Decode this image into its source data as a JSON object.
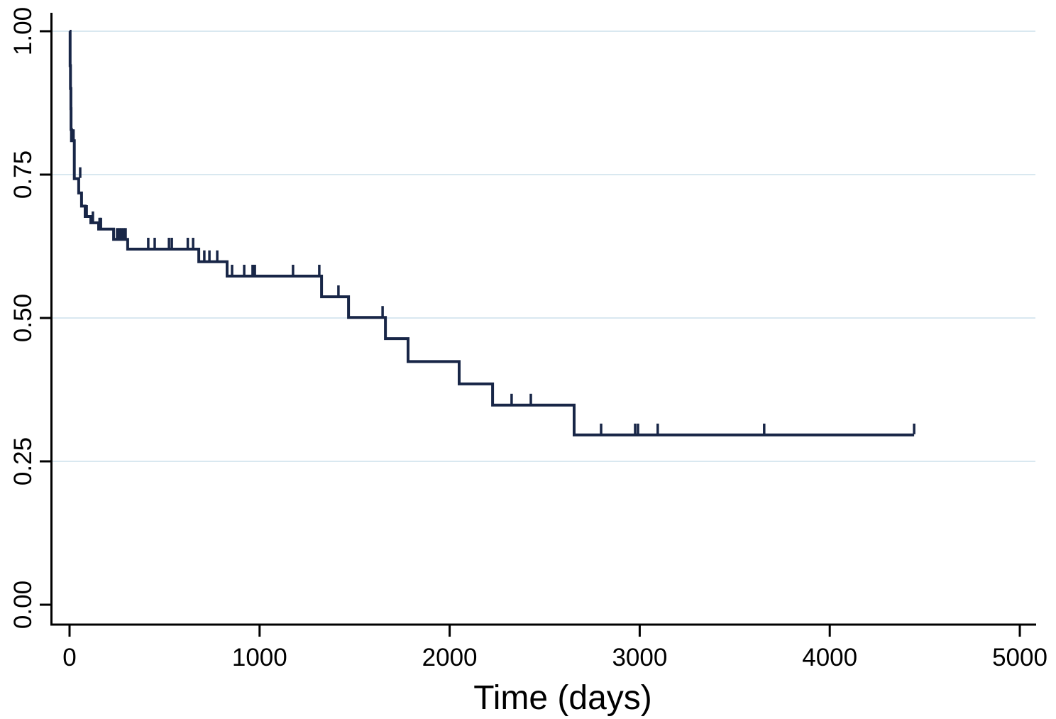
{
  "chart_data": {
    "type": "line",
    "subtype": "kaplan-meier-step",
    "title": "",
    "xlabel": "Time (days)",
    "ylabel": "",
    "xlim": [
      0,
      5090
    ],
    "ylim": [
      0.0,
      1.0
    ],
    "grid": "horizontal-at-y-ticks",
    "legend": "none",
    "x_ticks": [
      {
        "label": "0",
        "value": 0
      },
      {
        "label": "1000",
        "value": 1000
      },
      {
        "label": "2000",
        "value": 2000
      },
      {
        "label": "3000",
        "value": 3000
      },
      {
        "label": "4000",
        "value": 4000
      },
      {
        "label": "5000",
        "value": 5000
      }
    ],
    "y_ticks": [
      {
        "label": "0.00",
        "value": 0.0
      },
      {
        "label": "0.25",
        "value": 0.25
      },
      {
        "label": "0.50",
        "value": 0.5
      },
      {
        "label": "0.75",
        "value": 0.75
      },
      {
        "label": "1.00",
        "value": 1.0
      }
    ],
    "colors": {
      "curve": "#182647",
      "axis": "#000000",
      "gridline": "#d9e8f0",
      "background": "#ffffff",
      "text": "#000000"
    },
    "series": [
      {
        "name": "survival-curve",
        "steps": [
          [
            0,
            1.0
          ],
          [
            3,
            0.94
          ],
          [
            5,
            0.9
          ],
          [
            7,
            0.865
          ],
          [
            8,
            0.829
          ],
          [
            10,
            0.809
          ],
          [
            25,
            0.743
          ],
          [
            48,
            0.718
          ],
          [
            63,
            0.695
          ],
          [
            82,
            0.677
          ],
          [
            112,
            0.666
          ],
          [
            153,
            0.655
          ],
          [
            232,
            0.637
          ],
          [
            306,
            0.62
          ],
          [
            680,
            0.598
          ],
          [
            829,
            0.573
          ],
          [
            1326,
            0.537
          ],
          [
            1468,
            0.501
          ],
          [
            1662,
            0.464
          ],
          [
            1781,
            0.424
          ],
          [
            2050,
            0.385
          ],
          [
            2226,
            0.348
          ],
          [
            2655,
            0.296
          ],
          [
            4444,
            0.296
          ]
        ],
        "censor_marks": [
          [
            12,
            0.809
          ],
          [
            15,
            0.809
          ],
          [
            18,
            0.809
          ],
          [
            21,
            0.809
          ],
          [
            56,
            0.743
          ],
          [
            90,
            0.677
          ],
          [
            123,
            0.666
          ],
          [
            158,
            0.655
          ],
          [
            165,
            0.655
          ],
          [
            250,
            0.637
          ],
          [
            261,
            0.637
          ],
          [
            272,
            0.637
          ],
          [
            284,
            0.637
          ],
          [
            295,
            0.637
          ],
          [
            414,
            0.62
          ],
          [
            448,
            0.62
          ],
          [
            523,
            0.62
          ],
          [
            538,
            0.62
          ],
          [
            622,
            0.62
          ],
          [
            650,
            0.62
          ],
          [
            709,
            0.598
          ],
          [
            736,
            0.598
          ],
          [
            777,
            0.598
          ],
          [
            855,
            0.573
          ],
          [
            919,
            0.573
          ],
          [
            963,
            0.573
          ],
          [
            975,
            0.573
          ],
          [
            1176,
            0.573
          ],
          [
            1314,
            0.573
          ],
          [
            1415,
            0.537
          ],
          [
            1647,
            0.501
          ],
          [
            2326,
            0.348
          ],
          [
            2427,
            0.348
          ],
          [
            2797,
            0.296
          ],
          [
            2976,
            0.296
          ],
          [
            2991,
            0.296
          ],
          [
            3095,
            0.296
          ],
          [
            3655,
            0.296
          ],
          [
            4444,
            0.296
          ]
        ]
      }
    ]
  }
}
